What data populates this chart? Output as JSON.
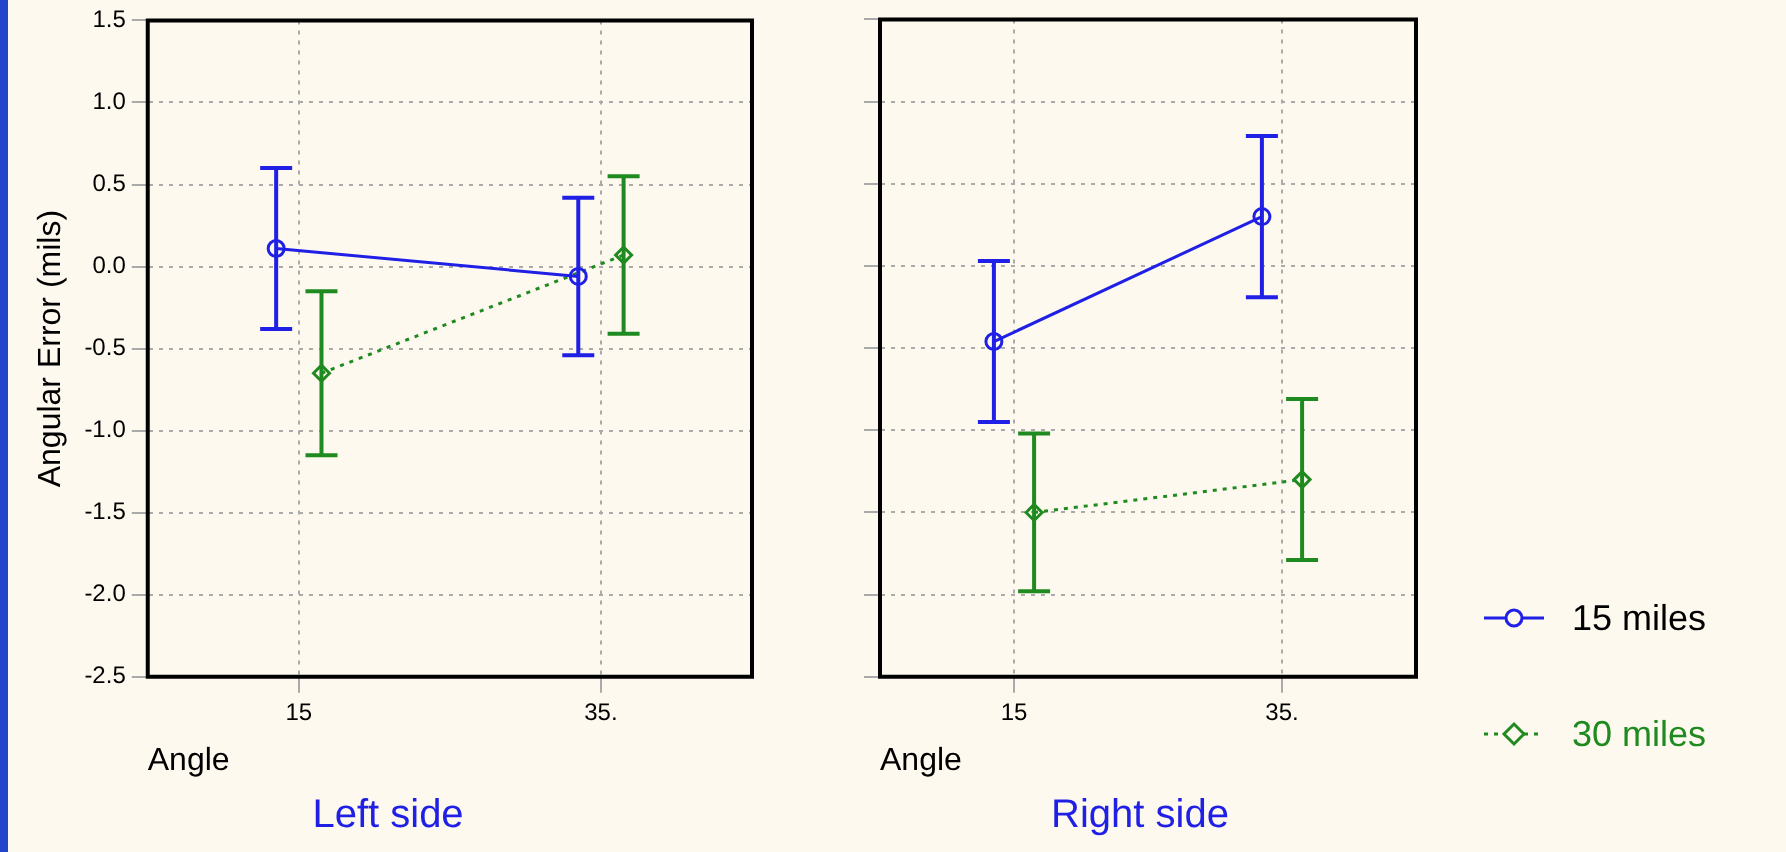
{
  "chart_data": [
    {
      "type": "line",
      "title": "Left side",
      "xlabel": "Angle",
      "ylabel": "Angular Error (mils)",
      "categories": [
        "15",
        "35."
      ],
      "ylim": [
        -2.5,
        1.5
      ],
      "yticks": [
        -2.5,
        {
          "value": -2,
          "label": "-2.0"
        },
        -1.5,
        {
          "value": -1,
          "label": "-1.0"
        },
        -0.5,
        {
          "value": 0,
          "label": "0.0"
        },
        0.5,
        {
          "value": 1,
          "label": "1.0"
        },
        1.5
      ],
      "grid": true,
      "legend": false,
      "series": [
        {
          "color": "#1f1fe6",
          "marker": "circle",
          "line_style": "solid",
          "values": [
            0.11,
            -0.06
          ],
          "errors": [
            0.49,
            0.48
          ]
        },
        {
          "color": "#1f8a1f",
          "marker": "diamond",
          "line_style": "dotted",
          "values": [
            -0.65,
            0.07
          ],
          "errors": [
            0.5,
            0.48
          ]
        }
      ]
    },
    {
      "type": "line",
      "title": "Right side",
      "xlabel": "Angle",
      "categories": [
        "15",
        "35."
      ],
      "ylim": [
        -2.5,
        1.5
      ],
      "yticks": [
        -2.5,
        -2,
        -1.5,
        -1,
        -0.5,
        0,
        0.5,
        1,
        1.5
      ],
      "grid": true,
      "legend": "right",
      "tick_labels": "x",
      "series": [
        {
          "name": "15 miles",
          "color": "#1f1fe6",
          "marker": "circle",
          "line_style": "solid",
          "values": [
            -0.46,
            0.3
          ],
          "errors": [
            0.49,
            0.49
          ]
        },
        {
          "name": "30 miles",
          "color": "#1f8a1f",
          "marker": "diamond",
          "line_style": "dotted",
          "values": [
            -1.5,
            -1.3
          ],
          "errors": [
            0.48,
            0.49
          ]
        }
      ]
    }
  ]
}
